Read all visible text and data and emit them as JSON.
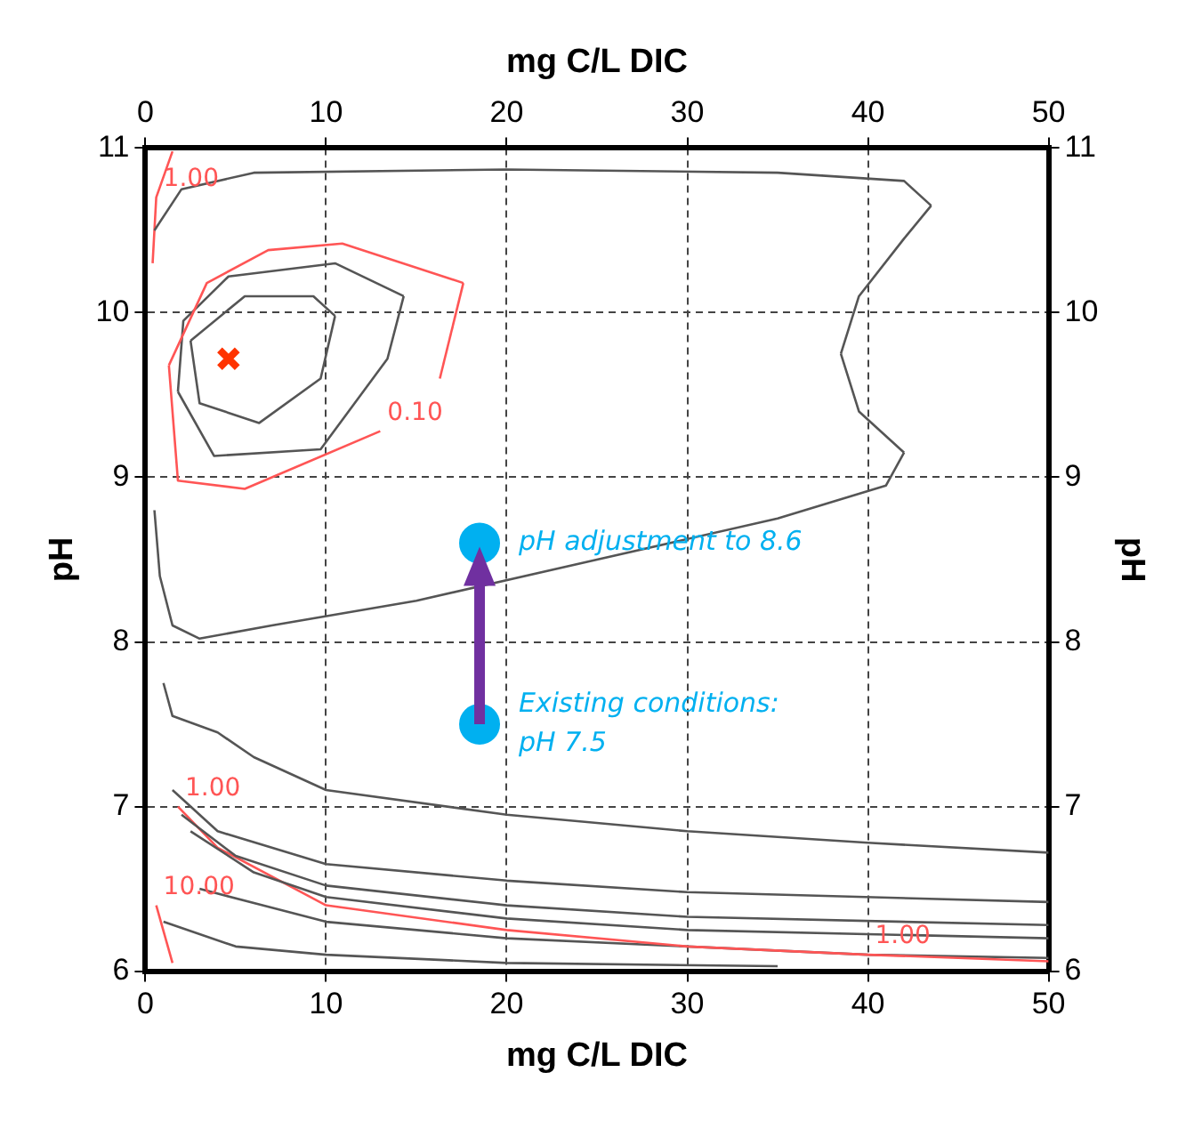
{
  "chart_data": {
    "type": "line",
    "xlabel": "mg C/L DIC",
    "x2label": "mg C/L DIC",
    "ylabel": "pH",
    "y2label": "pH",
    "xlim": [
      0,
      50
    ],
    "xticks": [
      0,
      10,
      20,
      30,
      40,
      50
    ],
    "x2lim": [
      0,
      50
    ],
    "x2ticks": [
      0,
      10,
      20,
      30,
      40,
      50
    ],
    "ylim": [
      6,
      11
    ],
    "yticks": [
      6,
      7,
      8,
      9,
      10,
      11
    ],
    "y2lim": [
      6,
      11
    ],
    "y2ticks": [
      6,
      7,
      8,
      9,
      10,
      11
    ],
    "grid": true,
    "legend": false,
    "series": [
      {
        "color": "#555555",
        "x": [
          0.5,
          0.8,
          1.5,
          3,
          7,
          15,
          25,
          35,
          41,
          42
        ],
        "values": [
          8.8,
          8.4,
          8.1,
          8.02,
          8.1,
          8.25,
          8.5,
          8.75,
          8.95,
          9.15
        ]
      },
      {
        "color": "#555555",
        "x": [
          38.5,
          39.5,
          42
        ],
        "values": [
          9.75,
          9.4,
          9.15
        ]
      },
      {
        "color": "#555555",
        "x": [
          38.5,
          39.5,
          42,
          43.5
        ],
        "values": [
          9.75,
          10.1,
          10.45,
          10.65
        ]
      },
      {
        "color": "#555555",
        "x": [
          0.5,
          2,
          6,
          20,
          35,
          42,
          43.5
        ],
        "values": [
          10.5,
          10.75,
          10.85,
          10.87,
          10.85,
          10.8,
          10.65
        ]
      },
      {
        "color": "#ff5555",
        "x": [
          1.3,
          3.4,
          6.8,
          10.9,
          17.6
        ],
        "values": [
          9.68,
          10.18,
          10.38,
          10.42,
          10.18
        ]
      },
      {
        "color": "#ff5555",
        "x": [
          16.3,
          17.6
        ],
        "values": [
          9.6,
          10.18
        ]
      },
      {
        "color": "#ff5555",
        "x": [
          1.3,
          1.8,
          5.5,
          13
        ],
        "values": [
          9.68,
          8.98,
          8.93,
          9.28
        ]
      },
      {
        "color": "#555555",
        "x": [
          1.8,
          2.1,
          4.6,
          10.5,
          14.3
        ],
        "values": [
          9.52,
          9.95,
          10.22,
          10.3,
          10.1
        ]
      },
      {
        "color": "#555555",
        "x": [
          1.8,
          3.8,
          9.7,
          13.4,
          14.3
        ],
        "values": [
          9.52,
          9.13,
          9.17,
          9.72,
          10.1
        ]
      },
      {
        "color": "#555555",
        "x": [
          2.5,
          5.5,
          9.3,
          10.5
        ],
        "values": [
          9.83,
          10.1,
          10.1,
          9.98
        ]
      },
      {
        "color": "#555555",
        "x": [
          2.5,
          3,
          6.3,
          9.7,
          10.5
        ],
        "values": [
          9.83,
          9.45,
          9.33,
          9.6,
          9.98
        ]
      },
      {
        "color": "#ff5555",
        "x": [
          0.4,
          0.6,
          1.5
        ],
        "values": [
          10.3,
          10.7,
          10.98
        ]
      },
      {
        "color": "#555555",
        "x": [
          1,
          1.5,
          4,
          6,
          10,
          20,
          30,
          40,
          50
        ],
        "values": [
          7.75,
          7.55,
          7.45,
          7.3,
          7.1,
          6.95,
          6.85,
          6.78,
          6.72
        ]
      },
      {
        "color": "#555555",
        "x": [
          1.5,
          4,
          10,
          20,
          30,
          50
        ],
        "values": [
          7.1,
          6.85,
          6.65,
          6.55,
          6.48,
          6.42
        ]
      },
      {
        "color": "#555555",
        "x": [
          2,
          5,
          10,
          20,
          30,
          50
        ],
        "values": [
          6.95,
          6.7,
          6.52,
          6.4,
          6.33,
          6.28
        ]
      },
      {
        "color": "#555555",
        "x": [
          2.5,
          6,
          10,
          20,
          30,
          50
        ],
        "values": [
          6.85,
          6.6,
          6.45,
          6.32,
          6.25,
          6.2
        ]
      },
      {
        "color": "#ff5555",
        "x": [
          1.8,
          4,
          10,
          20,
          30,
          40,
          50
        ],
        "values": [
          7.0,
          6.75,
          6.4,
          6.25,
          6.15,
          6.1,
          6.06
        ]
      },
      {
        "color": "#555555",
        "x": [
          3,
          10,
          20,
          40,
          50
        ],
        "values": [
          6.5,
          6.3,
          6.2,
          6.1,
          6.08
        ]
      },
      {
        "color": "#555555",
        "x": [
          1,
          5,
          10,
          20,
          35
        ],
        "values": [
          6.3,
          6.15,
          6.1,
          6.05,
          6.03
        ]
      },
      {
        "color": "#ff5555",
        "x": [
          0.6,
          1.5
        ],
        "values": [
          6.4,
          6.05
        ]
      },
      {
        "type": "scatter",
        "color": "#ff3300",
        "marker": "cross",
        "x": [
          4.6
        ],
        "values": [
          9.72
        ]
      },
      {
        "type": "scatter",
        "color": "#00b0f0",
        "marker": "circle",
        "x": [
          18.5,
          18.5
        ],
        "values": [
          7.5,
          8.6
        ]
      }
    ],
    "annotations": [
      {
        "text": "1.00",
        "x": 0.6,
        "y": 10.7
      },
      {
        "text": "0.10",
        "x": 13,
        "y": 9.28
      },
      {
        "text": "1.00",
        "x": 1.8,
        "y": 7.0
      },
      {
        "text": "10.00",
        "x": 0.6,
        "y": 6.4
      },
      {
        "text": "1.00",
        "x": 40,
        "y": 6.1
      },
      {
        "text": "pH adjustment to 8.6",
        "x": 18.5,
        "y": 8.6
      },
      {
        "text": "Existing conditions:\npH 7.5",
        "x": 18.5,
        "y": 7.5
      }
    ]
  }
}
